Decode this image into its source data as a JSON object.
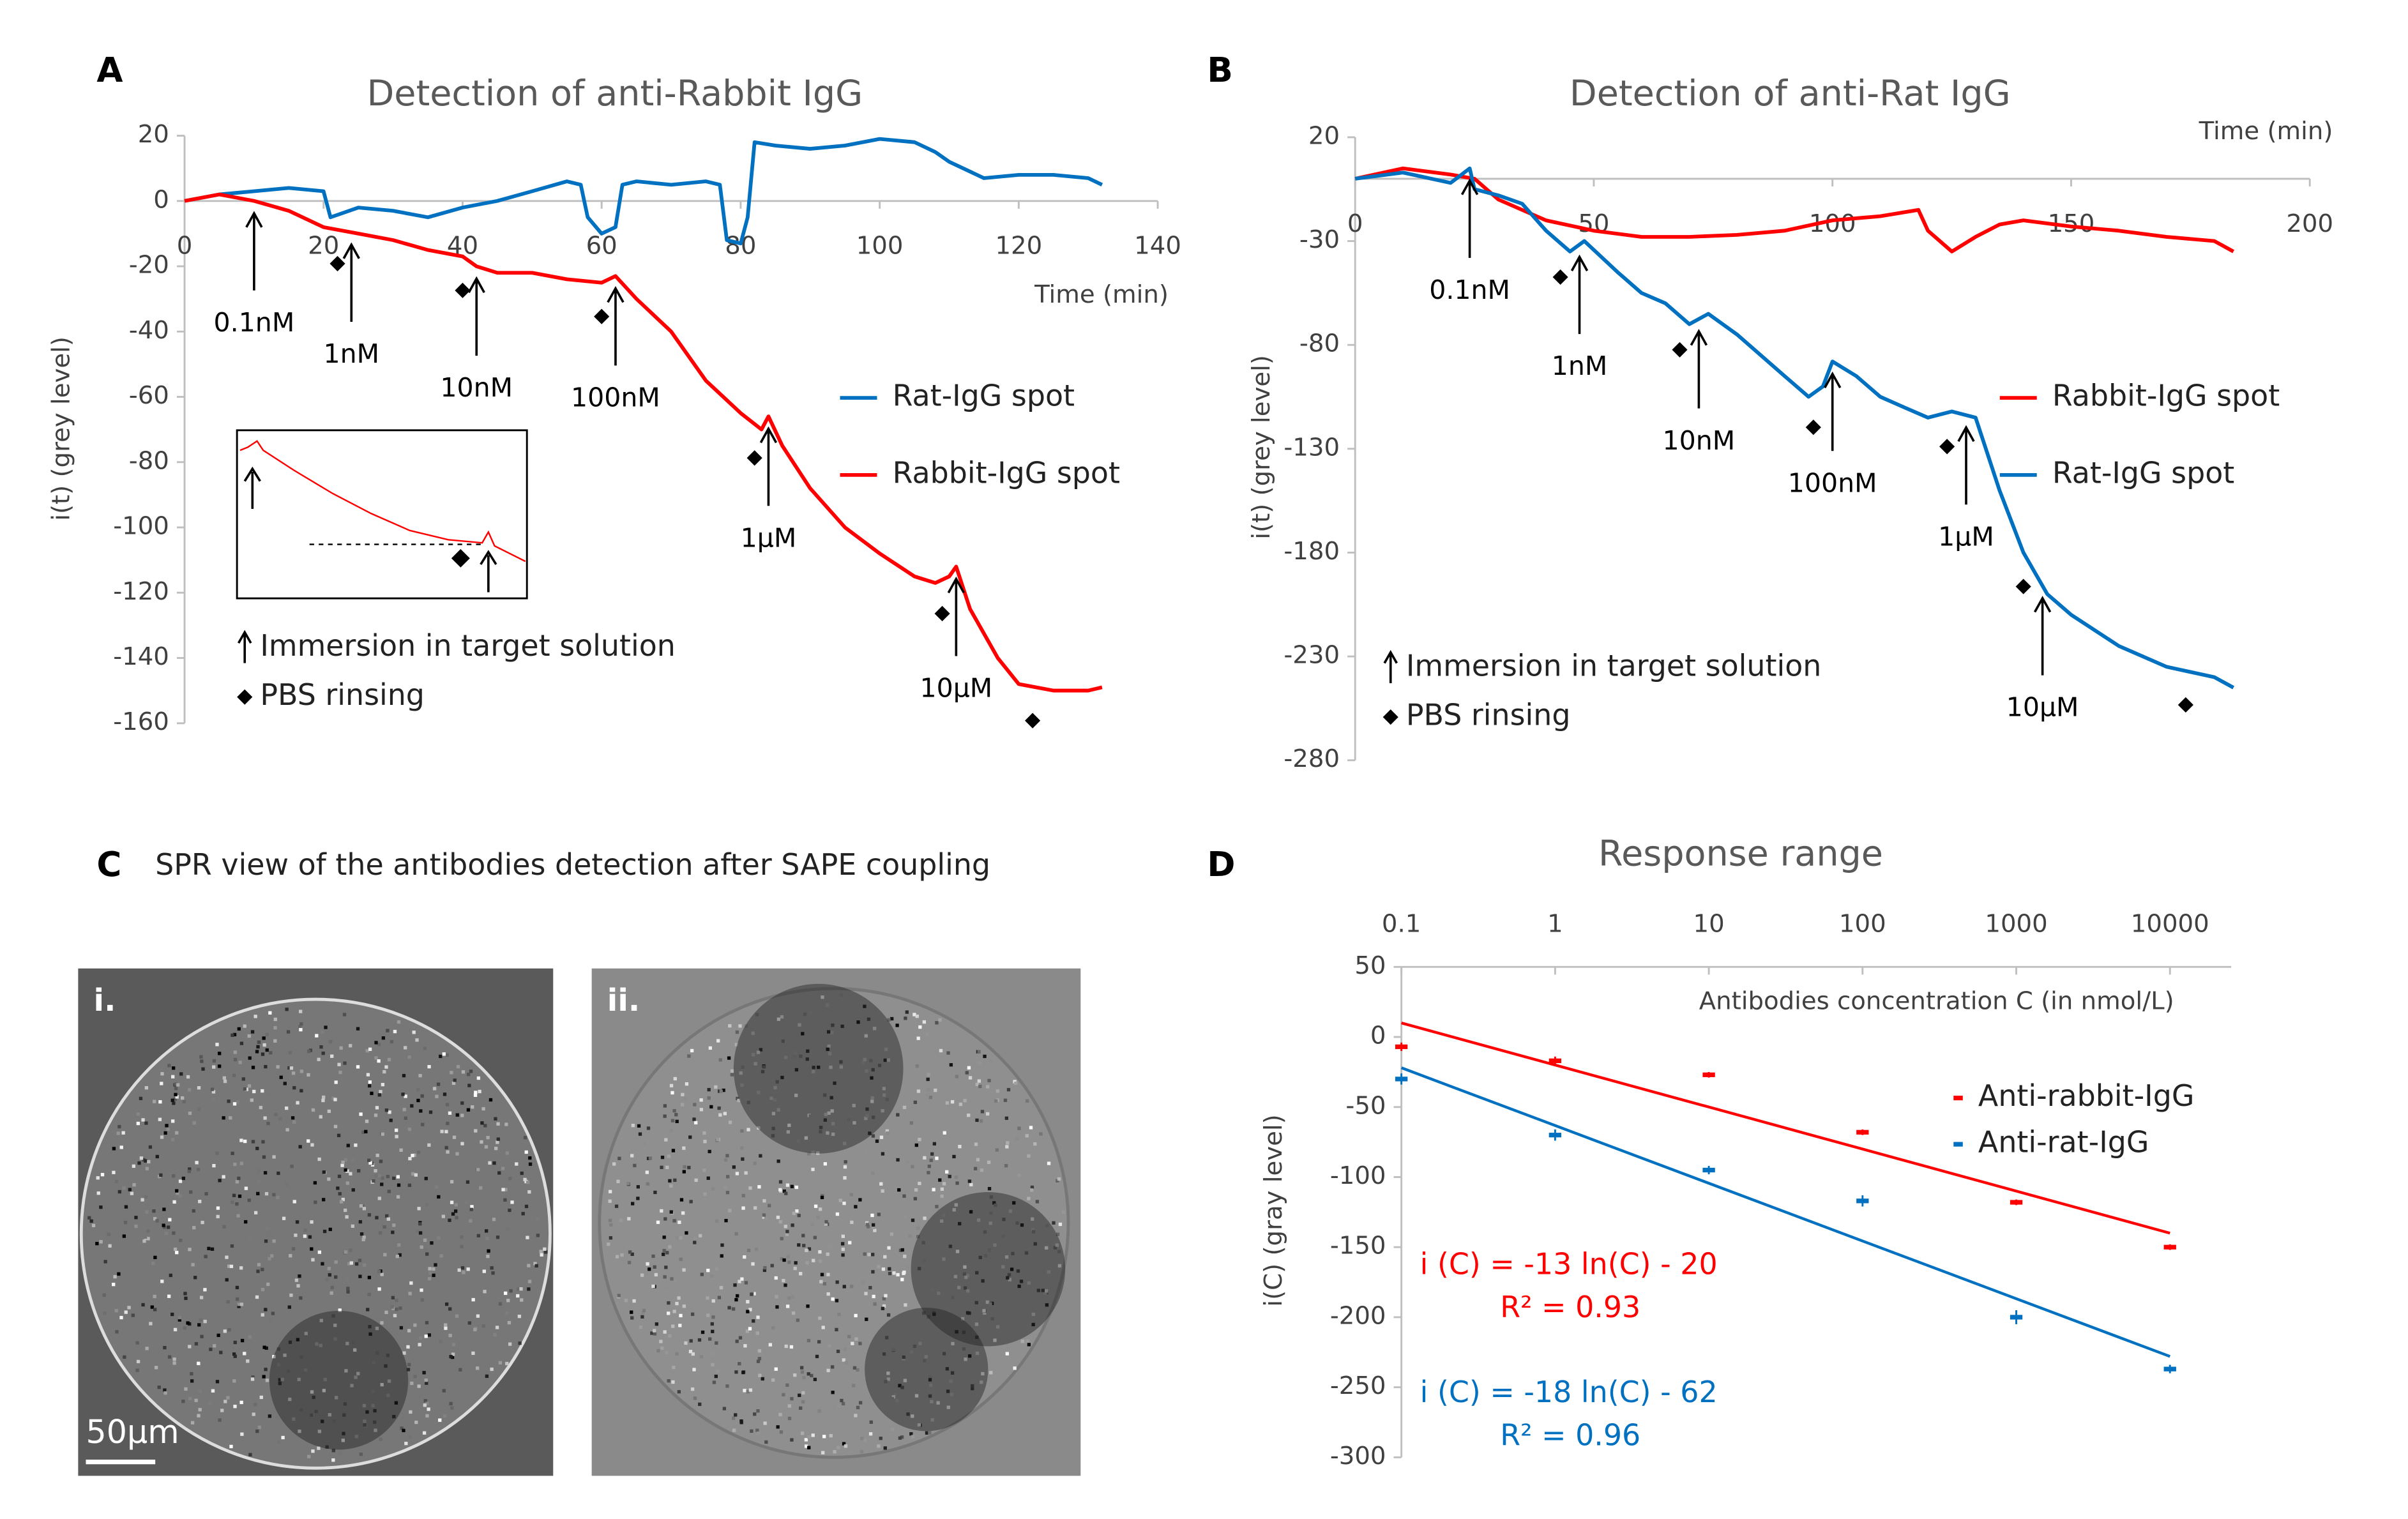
{
  "chart_data": [
    {
      "type": "line",
      "panel": "A",
      "title": "Detection of anti-Rabbit IgG",
      "xlabel": "Time (min)",
      "ylabel": "i(t) (grey level)",
      "xlim": [
        0,
        140
      ],
      "xticks": [
        0,
        20,
        40,
        60,
        80,
        100,
        120,
        140
      ],
      "ylim": [
        -160,
        20
      ],
      "yticks": [
        20,
        0,
        -20,
        -40,
        -60,
        -80,
        -100,
        -120,
        -140,
        -160
      ],
      "series": [
        {
          "name": "Rat-IgG spot",
          "color": "#0070c0",
          "x": [
            0,
            5,
            10,
            15,
            20,
            21,
            25,
            30,
            35,
            40,
            45,
            50,
            55,
            57,
            58,
            60,
            62,
            63,
            65,
            70,
            75,
            77,
            78,
            80,
            81,
            82,
            85,
            90,
            95,
            100,
            105,
            108,
            110,
            115,
            120,
            125,
            130,
            132
          ],
          "values": [
            0,
            2,
            3,
            4,
            3,
            -5,
            -2,
            -3,
            -5,
            -2,
            0,
            3,
            6,
            5,
            -5,
            -10,
            -8,
            5,
            6,
            5,
            6,
            5,
            -12,
            -13,
            -5,
            18,
            17,
            16,
            17,
            19,
            18,
            15,
            12,
            7,
            8,
            8,
            7,
            5
          ]
        },
        {
          "name": "Rabbit-IgG spot",
          "color": "#ff0000",
          "x": [
            0,
            5,
            10,
            15,
            20,
            25,
            30,
            35,
            40,
            42,
            45,
            50,
            55,
            60,
            62,
            65,
            70,
            75,
            80,
            83,
            84,
            86,
            90,
            95,
            100,
            105,
            108,
            110,
            111,
            113,
            117,
            120,
            125,
            130,
            132
          ],
          "values": [
            0,
            2,
            0,
            -3,
            -8,
            -10,
            -12,
            -15,
            -17,
            -20,
            -22,
            -22,
            -24,
            -25,
            -23,
            -30,
            -40,
            -55,
            -65,
            -70,
            -66,
            -75,
            -88,
            -100,
            -108,
            -115,
            -117,
            -115,
            -112,
            -125,
            -140,
            -148,
            -150,
            -150,
            -149
          ]
        }
      ],
      "annotations": [
        {
          "text": "0.1nM",
          "x": 10
        },
        {
          "text": "1nM",
          "x": 24
        },
        {
          "text": "10nM",
          "x": 42
        },
        {
          "text": "100nM",
          "x": 62
        },
        {
          "text": "1µM",
          "x": 84
        },
        {
          "text": "10µM",
          "x": 111
        }
      ],
      "rinsing": [
        22,
        40,
        60,
        82,
        109,
        122
      ],
      "notes": [
        "Immersion in target solution",
        "PBS rinsing"
      ]
    },
    {
      "type": "line",
      "panel": "B",
      "title": "Detection of anti-Rat IgG",
      "xlabel": "Time (min)",
      "ylabel": "i(t) (grey level)",
      "xlim": [
        0,
        200
      ],
      "xticks": [
        0,
        50,
        100,
        150,
        200
      ],
      "ylim": [
        -280,
        20
      ],
      "yticks": [
        20,
        -30,
        -80,
        -130,
        -180,
        -230,
        -280
      ],
      "series": [
        {
          "name": "Rabbit-IgG spot",
          "color": "#ff0000",
          "x": [
            0,
            10,
            20,
            25,
            30,
            40,
            50,
            60,
            70,
            80,
            90,
            100,
            110,
            118,
            120,
            125,
            130,
            135,
            140,
            150,
            160,
            170,
            180,
            184
          ],
          "values": [
            0,
            5,
            2,
            0,
            -10,
            -20,
            -25,
            -28,
            -28,
            -27,
            -25,
            -20,
            -18,
            -15,
            -25,
            -35,
            -28,
            -22,
            -20,
            -23,
            -25,
            -28,
            -30,
            -35
          ]
        },
        {
          "name": "Rat-IgG spot",
          "color": "#0070c0",
          "x": [
            0,
            10,
            20,
            24,
            25,
            30,
            35,
            40,
            45,
            48,
            55,
            60,
            65,
            70,
            74,
            80,
            90,
            95,
            98,
            100,
            105,
            110,
            115,
            120,
            125,
            130,
            135,
            140,
            145,
            150,
            160,
            170,
            180,
            184
          ],
          "values": [
            0,
            3,
            -2,
            5,
            -5,
            -8,
            -12,
            -25,
            -35,
            -30,
            -45,
            -55,
            -60,
            -70,
            -65,
            -75,
            -95,
            -105,
            -100,
            -88,
            -95,
            -105,
            -110,
            -115,
            -112,
            -115,
            -150,
            -180,
            -200,
            -210,
            -225,
            -235,
            -240,
            -245
          ]
        }
      ],
      "annotations": [
        {
          "text": "0.1nM",
          "x": 24
        },
        {
          "text": "1nM",
          "x": 47
        },
        {
          "text": "10nM",
          "x": 72
        },
        {
          "text": "100nM",
          "x": 100
        },
        {
          "text": "1µM",
          "x": 128
        },
        {
          "text": "10µM",
          "x": 144
        }
      ],
      "rinsing": [
        43,
        68,
        96,
        124,
        140,
        174
      ],
      "notes": [
        "Immersion in target solution",
        "PBS rinsing"
      ]
    },
    {
      "type": "image",
      "panel": "C",
      "title": "SPR view of the antibodies detection after SAPE coupling",
      "images": [
        {
          "label": "i."
        },
        {
          "label": "ii."
        }
      ],
      "scale_bar": "50µm"
    },
    {
      "type": "scatter",
      "panel": "D",
      "title": "Response range",
      "xlabel": "Antibodies concentration C (in nmol/L)",
      "ylabel": "i(C) (gray level)",
      "xscale": "log",
      "xlim": [
        0.1,
        25000
      ],
      "xticks": [
        0.1,
        1,
        10,
        100,
        1000,
        10000
      ],
      "ylim": [
        -300,
        50
      ],
      "yticks": [
        50,
        0,
        -50,
        -100,
        -150,
        -200,
        -250,
        -300
      ],
      "series": [
        {
          "name": "Anti-rabbit-IgG",
          "color": "#ff0000",
          "x": [
            0.1,
            1,
            10,
            100,
            1000,
            10000
          ],
          "values": [
            -7,
            -17,
            -27,
            -68,
            -118,
            -150
          ],
          "errors": [
            3,
            3,
            2,
            2,
            2,
            2
          ],
          "fit": {
            "x": [
              0.1,
              10000
            ],
            "values": [
              10,
              -140
            ]
          },
          "equation": "i (C) = -13 ln(C) - 20",
          "r2": "R² = 0.93"
        },
        {
          "name": "Anti-rat-IgG",
          "color": "#0070c0",
          "x": [
            0.1,
            1,
            10,
            100,
            1000,
            10000
          ],
          "values": [
            -30,
            -70,
            -95,
            -117,
            -200,
            -237
          ],
          "errors": [
            4,
            4,
            3,
            4,
            5,
            3
          ],
          "fit": {
            "x": [
              0.1,
              10000
            ],
            "values": [
              -22,
              -228
            ]
          },
          "equation": "i (C) = -18 ln(C) - 62",
          "r2": "R² = 0.96"
        }
      ]
    }
  ]
}
